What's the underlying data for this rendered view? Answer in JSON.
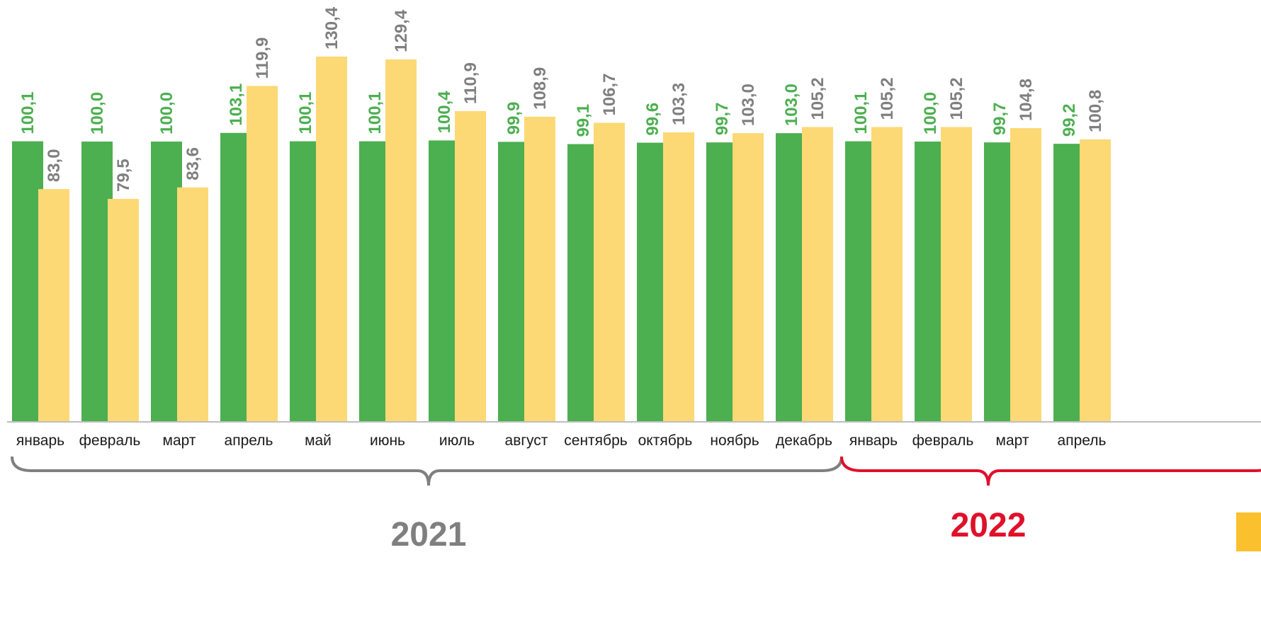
{
  "chart_data": {
    "type": "bar",
    "categories": [
      "январь",
      "февраль",
      "март",
      "апрель",
      "май",
      "июнь",
      "июль",
      "август",
      "сентябрь",
      "октябрь",
      "ноябрь",
      "декабрь",
      "январь",
      "февраль",
      "март",
      "апрель"
    ],
    "series": [
      {
        "values": [
          100.1,
          100.0,
          100.0,
          103.1,
          100.1,
          100.1,
          100.4,
          99.9,
          99.1,
          99.6,
          99.7,
          103.0,
          100.1,
          100.0,
          99.7,
          99.2
        ],
        "labels": [
          "100,1",
          "100,0",
          "100,0",
          "103,1",
          "100,1",
          "100,1",
          "100,4",
          "99,9",
          "99,1",
          "99,6",
          "99,7",
          "103,0",
          "100,1",
          "100,0",
          "99,7",
          "99,2"
        ],
        "color": "#4caf50"
      },
      {
        "values": [
          83.0,
          79.5,
          83.6,
          119.9,
          130.4,
          129.4,
          110.9,
          108.9,
          106.7,
          103.3,
          103.0,
          105.2,
          105.2,
          105.2,
          104.8,
          100.8
        ],
        "labels": [
          "83,0",
          "79,5",
          "83,6",
          "119,9",
          "130,4",
          "129,4",
          "110,9",
          "108,9",
          "106,7",
          "103,3",
          "103,0",
          "105,2",
          "105,2",
          "105,2",
          "104,8",
          "100,8"
        ],
        "color": "#fcd975"
      }
    ],
    "groups": [
      {
        "label": "2021",
        "from": 0,
        "to": 11,
        "color": "#7f7f7f"
      },
      {
        "label": "2022",
        "from": 12,
        "to": 15,
        "color": "#e0102a"
      }
    ],
    "value_label_colors": [
      "#4caf50",
      "#7f7f7f"
    ],
    "legend_marker_color": "#fbc02d",
    "grid": false
  }
}
